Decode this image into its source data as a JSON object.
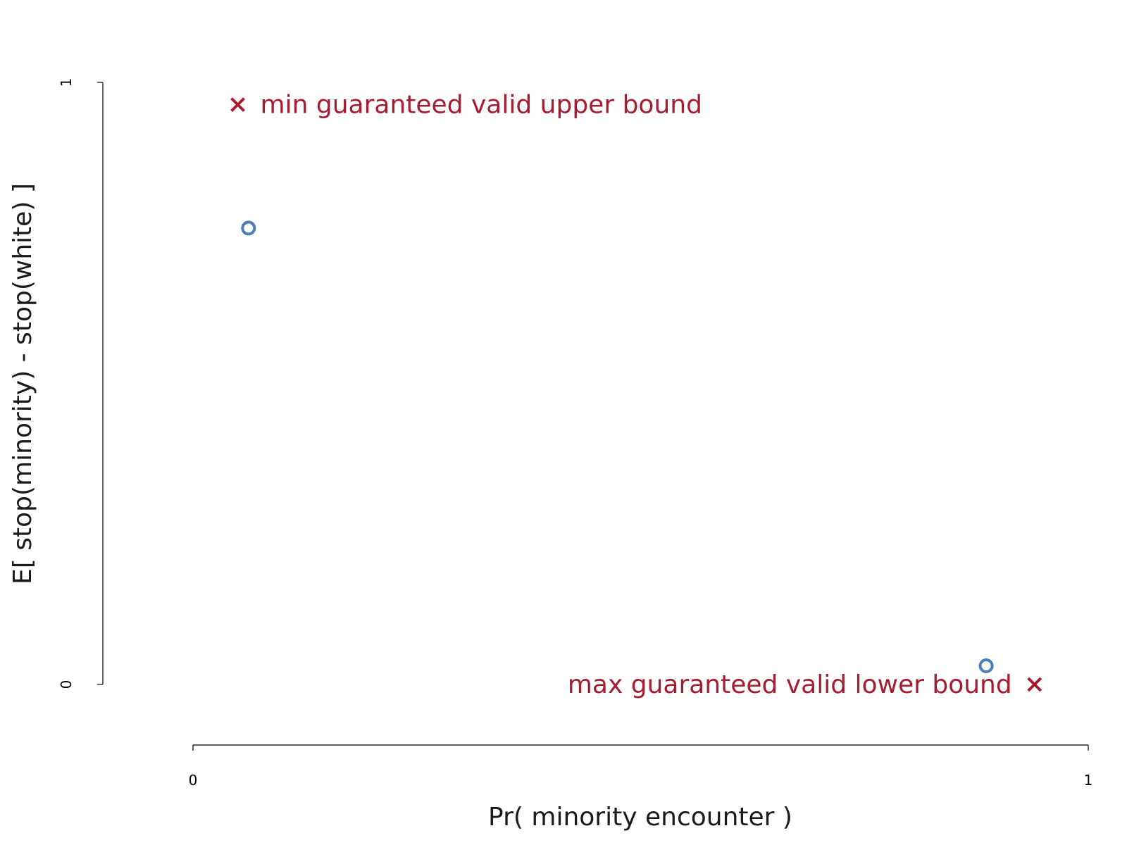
{
  "chart_data": {
    "type": "scatter",
    "title": "",
    "xlabel": "Pr( minority encounter )",
    "ylabel": "E[ stop(minority) - stop(white) ]",
    "xlim": [
      0,
      1
    ],
    "ylim": [
      0,
      1
    ],
    "x_ticks": [
      "0",
      "1"
    ],
    "y_ticks": [
      "0",
      "1"
    ],
    "grid": false,
    "legend": "none",
    "series": [
      {
        "marker": "circle",
        "color": "#4a7ebb",
        "points": [
          {
            "x": 0.062,
            "y": 0.758
          },
          {
            "x": 0.886,
            "y": 0.031
          }
        ]
      },
      {
        "marker": "x",
        "color": "#a61c2e",
        "points": [
          {
            "x": 0.05,
            "y": 0.963,
            "label": "min guaranteed valid upper bound",
            "label_side": "right"
          },
          {
            "x": 0.94,
            "y": 0.0,
            "label": "max guaranteed valid lower bound",
            "label_side": "left"
          }
        ]
      }
    ]
  }
}
